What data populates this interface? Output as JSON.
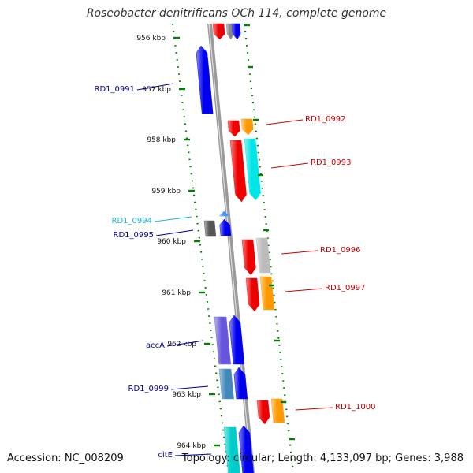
{
  "title": "Roseobacter denitrificans OCh 114, complete genome",
  "footer": {
    "accession": "Accession: NC_008209",
    "topology": "Topology: circular; Length: 4,133,097 bp; Genes: 3,988"
  },
  "colors": {
    "backbone": "#888888",
    "tick": "#008000",
    "label_red": "#cc0000",
    "label_blue": "#000099",
    "label_cyan": "#19b9d9"
  },
  "ruler_ticks": [
    "956 kbp",
    "957 kbp",
    "958 kbp",
    "959 kbp",
    "960 kbp",
    "961 kbp",
    "962 kbp",
    "963 kbp",
    "964 kbp"
  ],
  "genes": [
    {
      "id": "top-red",
      "color": "#ee0000"
    },
    {
      "id": "top-gray",
      "color": "#888888"
    },
    {
      "id": "top-blue",
      "color": "#0000ee"
    },
    {
      "id": "rd1-0991",
      "color": "#0000ee"
    },
    {
      "id": "rd1-0992-a",
      "color": "#ee0000"
    },
    {
      "id": "rd1-0992-b",
      "color": "#ff9900"
    },
    {
      "id": "rd1-0993-a",
      "color": "#ee0000"
    },
    {
      "id": "rd1-0993-b",
      "color": "#00e5e5"
    },
    {
      "id": "rd1-0994-dark",
      "color": "#555555"
    },
    {
      "id": "rd1-0994-small",
      "color": "#3399ff"
    },
    {
      "id": "rd1-0995",
      "color": "#0000ee"
    },
    {
      "id": "rd1-0996-a",
      "color": "#ee0000"
    },
    {
      "id": "rd1-0996-b",
      "color": "#bbbbbb"
    },
    {
      "id": "rd1-0997-a",
      "color": "#ee0000"
    },
    {
      "id": "rd1-0997-b",
      "color": "#ff9900"
    },
    {
      "id": "acca-a",
      "color": "#6655dd"
    },
    {
      "id": "acca-b",
      "color": "#0000ee"
    },
    {
      "id": "rd1-0999-a",
      "color": "#4488bb"
    },
    {
      "id": "rd1-0999-b",
      "color": "#0000ee"
    },
    {
      "id": "rd1-1000-a",
      "color": "#ee0000"
    },
    {
      "id": "rd1-1000-b",
      "color": "#ff9900"
    },
    {
      "id": "cite-a",
      "color": "#00cccc"
    },
    {
      "id": "cite-b",
      "color": "#0000ee"
    }
  ],
  "gene_labels": [
    {
      "text": "RD1_0991",
      "color": "#000099"
    },
    {
      "text": "RD1_0992",
      "color": "#cc0000"
    },
    {
      "text": "RD1_0993",
      "color": "#cc0000"
    },
    {
      "text": "RD1_0994",
      "color": "#19b9d9"
    },
    {
      "text": "RD1_0995",
      "color": "#000099"
    },
    {
      "text": "RD1_0996",
      "color": "#cc0000"
    },
    {
      "text": "RD1_0997",
      "color": "#cc0000"
    },
    {
      "text": "accA",
      "color": "#000099"
    },
    {
      "text": "RD1_0999",
      "color": "#000099"
    },
    {
      "text": "RD1_1000",
      "color": "#cc0000"
    },
    {
      "text": "citE",
      "color": "#000099"
    }
  ]
}
